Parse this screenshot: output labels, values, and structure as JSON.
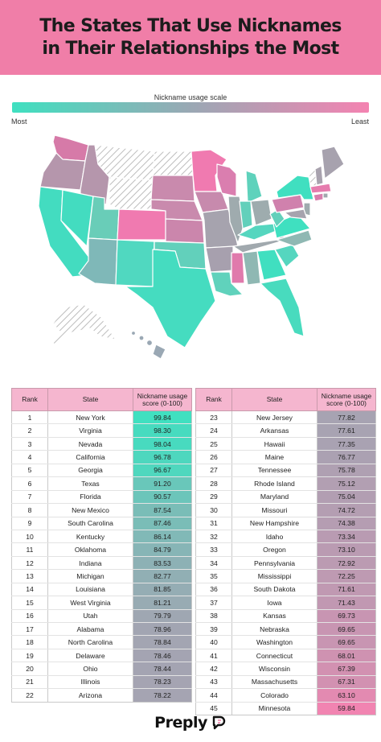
{
  "title": {
    "line1": "The States That Use Nicknames",
    "line2": "in Their Relationships the Most"
  },
  "scale": {
    "title": "Nickname usage scale",
    "most_label": "Most",
    "least_label": "Least",
    "colors": {
      "most": "#3fe0c0",
      "mid": "#9aa8b4",
      "least": "#f483b1"
    }
  },
  "table_headers": {
    "rank": "Rank",
    "state": "State",
    "score": "Nickname usage score (0-100)"
  },
  "left_table": [
    {
      "rank": "1",
      "state": "New York",
      "score": "99.84"
    },
    {
      "rank": "2",
      "state": "Virginia",
      "score": "98.30"
    },
    {
      "rank": "3",
      "state": "Nevada",
      "score": "98.04"
    },
    {
      "rank": "4",
      "state": "California",
      "score": "96.78"
    },
    {
      "rank": "5",
      "state": "Georgia",
      "score": "96.67"
    },
    {
      "rank": "6",
      "state": "Texas",
      "score": "91.20"
    },
    {
      "rank": "7",
      "state": "Florida",
      "score": "90.57"
    },
    {
      "rank": "8",
      "state": "New Mexico",
      "score": "87.54"
    },
    {
      "rank": "9",
      "state": "South Carolina",
      "score": "87.46"
    },
    {
      "rank": "10",
      "state": "Kentucky",
      "score": "86.14"
    },
    {
      "rank": "11",
      "state": "Oklahoma",
      "score": "84.79"
    },
    {
      "rank": "12",
      "state": "Indiana",
      "score": "83.53"
    },
    {
      "rank": "13",
      "state": "Michigan",
      "score": "82.77"
    },
    {
      "rank": "14",
      "state": "Louisiana",
      "score": "81.85"
    },
    {
      "rank": "15",
      "state": "West Virginia",
      "score": "81.21"
    },
    {
      "rank": "16",
      "state": "Utah",
      "score": "79.79"
    },
    {
      "rank": "17",
      "state": "Alabama",
      "score": "78.96"
    },
    {
      "rank": "18",
      "state": "North Carolina",
      "score": "78.84"
    },
    {
      "rank": "19",
      "state": "Delaware",
      "score": "78.46"
    },
    {
      "rank": "20",
      "state": "Ohio",
      "score": "78.44"
    },
    {
      "rank": "21",
      "state": "Illinois",
      "score": "78.23"
    },
    {
      "rank": "22",
      "state": "Arizona",
      "score": "78.22"
    }
  ],
  "right_table": [
    {
      "rank": "23",
      "state": "New Jersey",
      "score": "77.82"
    },
    {
      "rank": "24",
      "state": "Arkansas",
      "score": "77.61"
    },
    {
      "rank": "25",
      "state": "Hawaii",
      "score": "77.35"
    },
    {
      "rank": "26",
      "state": "Maine",
      "score": "76.77"
    },
    {
      "rank": "27",
      "state": "Tennessee",
      "score": "75.78"
    },
    {
      "rank": "28",
      "state": "Rhode Island",
      "score": "75.12"
    },
    {
      "rank": "29",
      "state": "Maryland",
      "score": "75.04"
    },
    {
      "rank": "30",
      "state": "Missouri",
      "score": "74.72"
    },
    {
      "rank": "31",
      "state": "New Hampshire",
      "score": "74.38"
    },
    {
      "rank": "32",
      "state": "Idaho",
      "score": "73.34"
    },
    {
      "rank": "33",
      "state": "Oregon",
      "score": "73.10"
    },
    {
      "rank": "34",
      "state": "Pennsylvania",
      "score": "72.92"
    },
    {
      "rank": "35",
      "state": "Mississippi",
      "score": "72.25"
    },
    {
      "rank": "36",
      "state": "South Dakota",
      "score": "71.61"
    },
    {
      "rank": "37",
      "state": "Iowa",
      "score": "71.43"
    },
    {
      "rank": "38",
      "state": "Kansas",
      "score": "69.73"
    },
    {
      "rank": "39",
      "state": "Nebraska",
      "score": "69.65"
    },
    {
      "rank": "40",
      "state": "Washington",
      "score": "69.65"
    },
    {
      "rank": "41",
      "state": "Connecticut",
      "score": "68.01"
    },
    {
      "rank": "42",
      "state": "Wisconsin",
      "score": "67.39"
    },
    {
      "rank": "43",
      "state": "Massachusetts",
      "score": "67.31"
    },
    {
      "rank": "44",
      "state": "Colorado",
      "score": "63.10"
    },
    {
      "rank": "45",
      "state": "Minnesota",
      "score": "59.84"
    }
  ],
  "brand": {
    "name": "Preply",
    "icon": "preply-logo-icon"
  }
}
